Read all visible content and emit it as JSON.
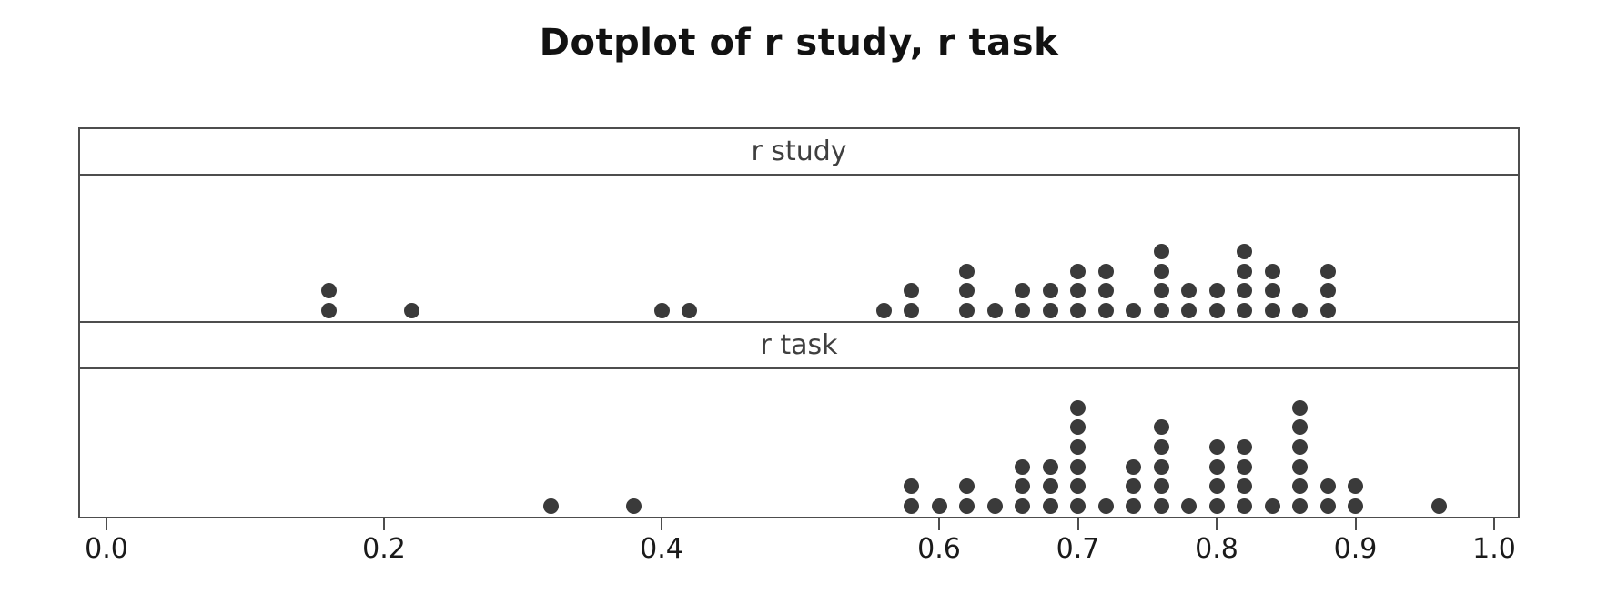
{
  "title": "Dotplot of r study, r task",
  "colors": {
    "dot": "#3a3a3a",
    "border": "#4d4d4d",
    "header_text": "#3f3f3f",
    "tick_text": "#1a1a1a",
    "title_text": "#121212",
    "background": "#ffffff"
  },
  "chart_data": {
    "type": "dotplot",
    "title": "Dotplot of r study, r task",
    "xlabel": "",
    "ylabel": "",
    "grid": false,
    "legend": "none",
    "xlim": [
      -0.02,
      1.02
    ],
    "x_ticks": [
      0.0,
      0.2,
      0.4,
      0.6,
      0.7,
      0.8,
      0.9,
      1.0
    ],
    "x_tick_labels": [
      "0.0",
      "0.2",
      "0.4",
      "0.6",
      "0.7",
      "0.8",
      "0.9",
      "1.0"
    ],
    "panels": [
      {
        "label": "r study",
        "points": [
          {
            "value": 0.16,
            "count": 2
          },
          {
            "value": 0.22,
            "count": 1
          },
          {
            "value": 0.4,
            "count": 1
          },
          {
            "value": 0.42,
            "count": 1
          },
          {
            "value": 0.56,
            "count": 1
          },
          {
            "value": 0.58,
            "count": 2
          },
          {
            "value": 0.62,
            "count": 3
          },
          {
            "value": 0.64,
            "count": 1
          },
          {
            "value": 0.66,
            "count": 2
          },
          {
            "value": 0.68,
            "count": 2
          },
          {
            "value": 0.7,
            "count": 3
          },
          {
            "value": 0.72,
            "count": 3
          },
          {
            "value": 0.74,
            "count": 1
          },
          {
            "value": 0.76,
            "count": 4
          },
          {
            "value": 0.78,
            "count": 2
          },
          {
            "value": 0.8,
            "count": 2
          },
          {
            "value": 0.82,
            "count": 4
          },
          {
            "value": 0.84,
            "count": 3
          },
          {
            "value": 0.86,
            "count": 1
          },
          {
            "value": 0.88,
            "count": 3
          }
        ]
      },
      {
        "label": "r task",
        "points": [
          {
            "value": 0.32,
            "count": 1
          },
          {
            "value": 0.38,
            "count": 1
          },
          {
            "value": 0.58,
            "count": 2
          },
          {
            "value": 0.6,
            "count": 1
          },
          {
            "value": 0.62,
            "count": 2
          },
          {
            "value": 0.64,
            "count": 1
          },
          {
            "value": 0.66,
            "count": 3
          },
          {
            "value": 0.68,
            "count": 3
          },
          {
            "value": 0.7,
            "count": 6
          },
          {
            "value": 0.72,
            "count": 1
          },
          {
            "value": 0.74,
            "count": 3
          },
          {
            "value": 0.76,
            "count": 5
          },
          {
            "value": 0.78,
            "count": 1
          },
          {
            "value": 0.8,
            "count": 4
          },
          {
            "value": 0.82,
            "count": 4
          },
          {
            "value": 0.84,
            "count": 1
          },
          {
            "value": 0.86,
            "count": 6
          },
          {
            "value": 0.88,
            "count": 2
          },
          {
            "value": 0.9,
            "count": 2
          },
          {
            "value": 0.96,
            "count": 1
          }
        ]
      }
    ]
  }
}
